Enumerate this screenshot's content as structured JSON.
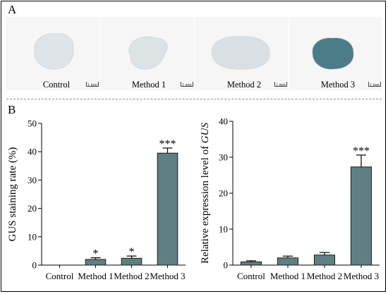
{
  "panel_a": {
    "letter": "A",
    "samples": [
      {
        "label": "Control",
        "scale": "1 mm",
        "color": "#dfe4e8"
      },
      {
        "label": "Method 1",
        "scale": "1 mm",
        "color": "#dde2e5"
      },
      {
        "label": "Method 2",
        "scale": "1 mm",
        "color": "#d9dfe2"
      },
      {
        "label": "Method 3",
        "scale": "1 mm",
        "color": "#4d7c89"
      }
    ]
  },
  "panel_b": {
    "letter": "B"
  },
  "chart_data": [
    {
      "type": "bar",
      "categories": [
        "Control",
        "Method 1",
        "Method 2",
        "Method 3"
      ],
      "values": [
        0,
        2.0,
        2.4,
        39.5
      ],
      "errors": [
        0,
        0.6,
        0.8,
        1.8
      ],
      "significance": [
        "",
        "*",
        "*",
        "***"
      ],
      "ylabel": "GUS staining rate (%)",
      "ylim": [
        0,
        50
      ],
      "yticks": [
        0,
        10,
        20,
        30,
        40,
        50
      ],
      "bar_color": "#5f8082"
    },
    {
      "type": "bar",
      "categories": [
        "Control",
        "Method 1",
        "Method 2",
        "Method 3"
      ],
      "values": [
        0.9,
        2.0,
        2.8,
        27.3
      ],
      "errors": [
        0.3,
        0.5,
        0.7,
        3.3
      ],
      "significance": [
        "",
        "",
        "",
        "***"
      ],
      "ylabel": "Relative expression level of ",
      "ylabel_italic": "GUS",
      "ylim": [
        0,
        40
      ],
      "yticks": [
        0,
        10,
        20,
        30,
        40
      ],
      "bar_color": "#5f8082"
    }
  ]
}
